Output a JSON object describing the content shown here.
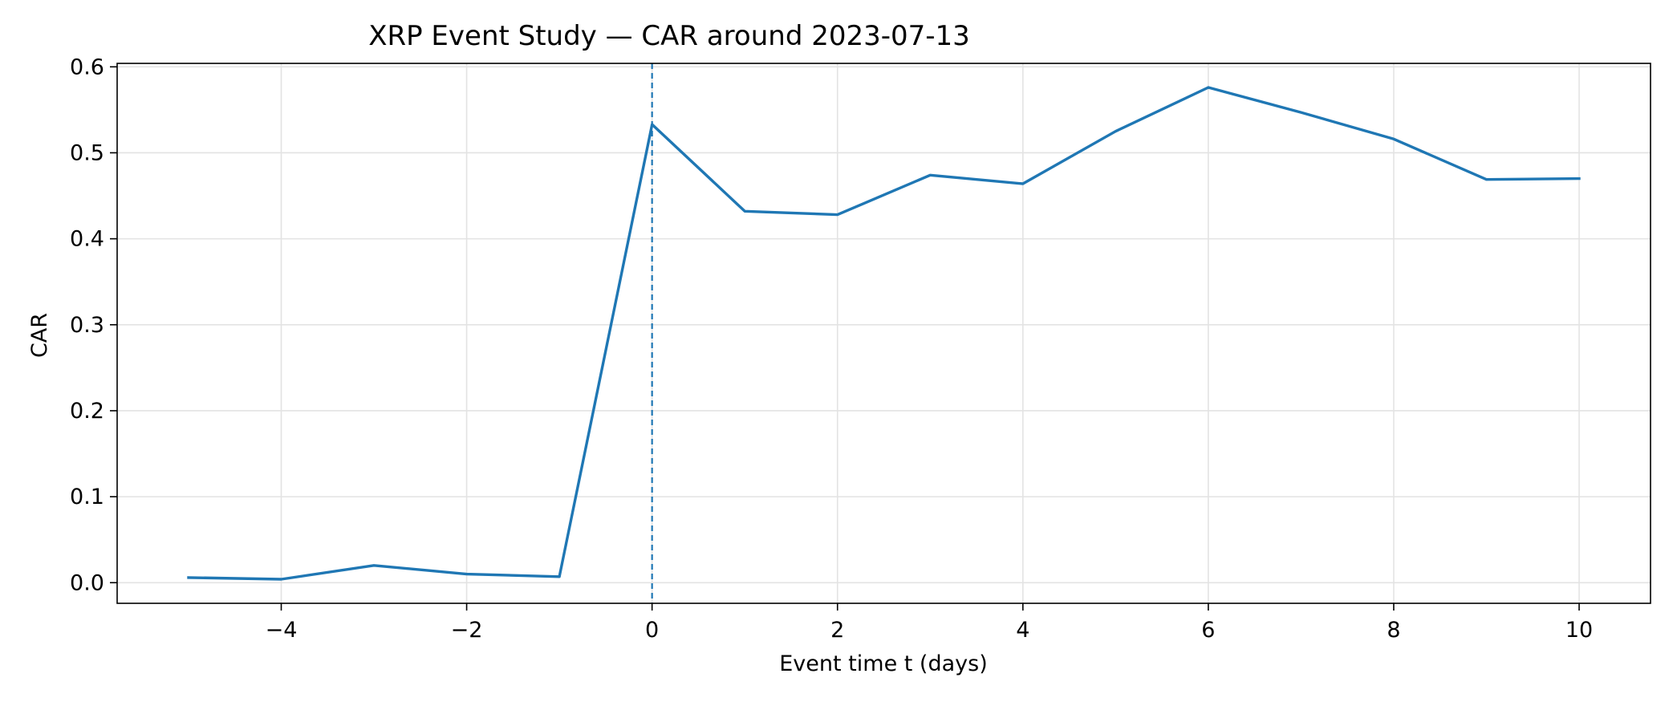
{
  "chart_data": {
    "type": "line",
    "title": "XRP Event Study — CAR around 2023-07-13",
    "xlabel": "Event time t (days)",
    "ylabel": "CAR",
    "xlim": [
      -5.77,
      10.77
    ],
    "ylim": [
      -0.024,
      0.604
    ],
    "xticks": [
      -4,
      -2,
      0,
      2,
      4,
      6,
      8,
      10
    ],
    "xtick_labels": [
      "−4",
      "−2",
      "0",
      "2",
      "4",
      "6",
      "8",
      "10"
    ],
    "yticks": [
      0.0,
      0.1,
      0.2,
      0.3,
      0.4,
      0.5,
      0.6
    ],
    "ytick_labels": [
      "0.0",
      "0.1",
      "0.2",
      "0.3",
      "0.4",
      "0.5",
      "0.6"
    ],
    "grid": true,
    "event_line": {
      "x": 0,
      "style": "dashed",
      "color": "#1f77b4"
    },
    "series": [
      {
        "color": "#1f77b4",
        "x": [
          -5,
          -4,
          -3,
          -2,
          -1,
          0,
          1,
          2,
          3,
          4,
          5,
          6,
          7,
          8,
          9,
          10
        ],
        "y": [
          0.006,
          0.004,
          0.02,
          0.01,
          0.007,
          0.533,
          0.432,
          0.428,
          0.474,
          0.464,
          0.525,
          0.576,
          0.547,
          0.516,
          0.469,
          0.47
        ]
      }
    ]
  }
}
